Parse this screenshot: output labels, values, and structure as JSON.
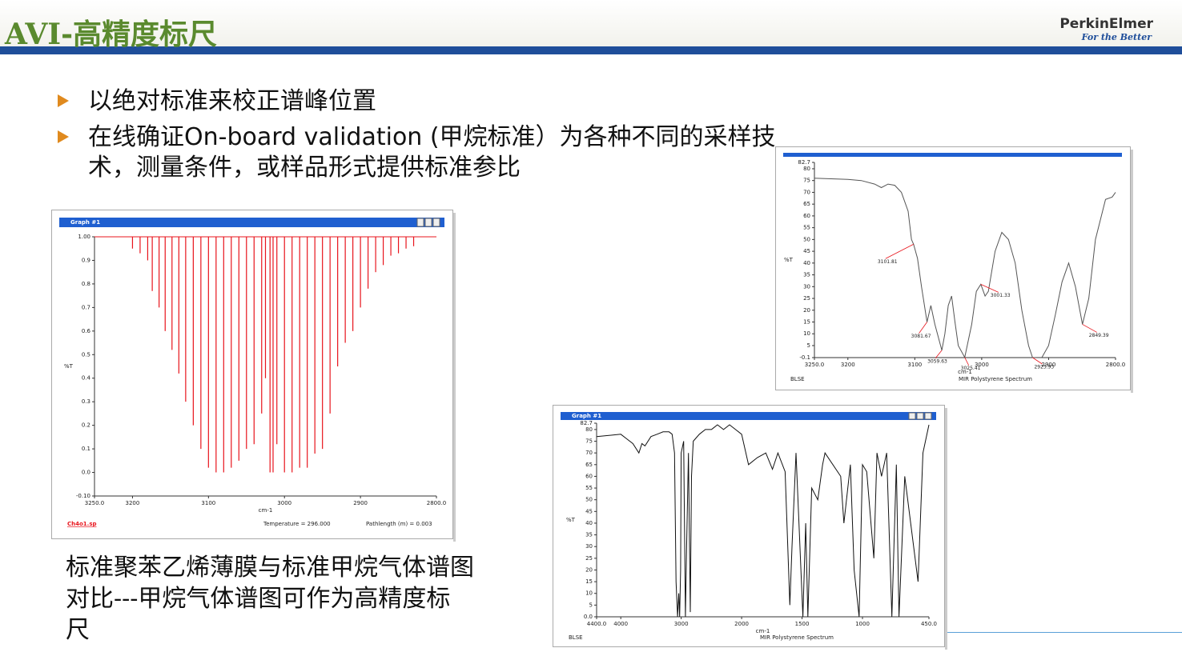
{
  "header": {
    "title": "AVI-高精度标尺",
    "logo": "PerkinElmer",
    "tagline": "For the Better"
  },
  "bullets": [
    "以绝对标准来校正谱峰位置",
    "在线确证On-board validation (甲烷标准）为各种不同的采样技术，测量条件，或样品形式提供标准参比"
  ],
  "caption": "标准聚苯乙烯薄膜与标准甲烷气体谱图对比---甲烷气体谱图可作为高精度标尺",
  "figures": [
    {
      "type": "stick",
      "window_title": "Graph #1",
      "x_label": "cm-1",
      "y_label": "%T",
      "color": "#e8141c",
      "xlim": [
        3250,
        2800
      ],
      "ylim": [
        -0.1,
        1.0
      ],
      "xticks": [
        {
          "value": 3250,
          "label": "3250.0"
        },
        3200,
        3100,
        3000,
        2900,
        {
          "value": 2800,
          "label": "2800.0"
        }
      ],
      "yticks": [
        {
          "value": -0.1,
          "label": "-0.10"
        },
        {
          "value": 0,
          "label": "0.0"
        },
        0.1,
        0.2,
        0.3,
        0.4,
        0.5,
        0.6,
        0.7,
        0.8,
        0.9,
        {
          "value": 1,
          "label": "1.00"
        }
      ],
      "x": [
        3200,
        3190,
        3180,
        3174,
        3165,
        3157,
        3148,
        3139,
        3130,
        3120,
        3110,
        3100,
        3090,
        3080,
        3070,
        3060,
        3050,
        3040,
        3030,
        3025,
        3019,
        3015,
        3010,
        3000,
        2990,
        2980,
        2970,
        2960,
        2950,
        2940,
        2930,
        2920,
        2910,
        2900,
        2890,
        2880,
        2870,
        2860,
        2850,
        2840,
        2830
      ],
      "values": [
        0.95,
        0.93,
        0.9,
        0.77,
        0.7,
        0.6,
        0.52,
        0.42,
        0.3,
        0.2,
        0.1,
        0.02,
        0,
        0,
        0.02,
        0.05,
        0.1,
        0.12,
        0.25,
        0.4,
        0,
        0,
        0.12,
        0,
        0,
        0.02,
        0.02,
        0.08,
        0.1,
        0.25,
        0.45,
        0.55,
        0.6,
        0.7,
        0.78,
        0.85,
        0.88,
        0.92,
        0.93,
        0.95,
        0.96
      ],
      "footer": [
        "Ch4o1.sp",
        "Temperature = 296.000",
        "Pathlength (m) = 0.003"
      ]
    },
    {
      "type": "line",
      "x_label": "cm-1",
      "y_label": "%T",
      "color": "#555555",
      "xlim": [
        3250,
        2800
      ],
      "ylim": [
        -0.1,
        82.7
      ],
      "xticks": [
        {
          "value": 3250,
          "label": "3250.0"
        },
        3200,
        3100,
        3000,
        2900,
        {
          "value": 2800,
          "label": "2800.0"
        }
      ],
      "yticks": [
        {
          "value": -0.1,
          "label": "-0.1"
        },
        5,
        10,
        15,
        20,
        25,
        30,
        35,
        40,
        45,
        50,
        55,
        60,
        65,
        70,
        75,
        80,
        82.7
      ],
      "x": [
        3250,
        3200,
        3180,
        3160,
        3150,
        3140,
        3130,
        3120,
        3110,
        3105,
        3101.81,
        3096,
        3090,
        3081.67,
        3076,
        3070,
        3059.63,
        3055,
        3050,
        3045,
        3040,
        3035,
        3025.41,
        3015,
        3008,
        3001.33,
        2995,
        2990,
        2980,
        2970,
        2960,
        2950,
        2940,
        2930,
        2923.93,
        2910,
        2900,
        2890,
        2880,
        2870,
        2860,
        2849.39,
        2840,
        2830,
        2815,
        2805,
        2800
      ],
      "values": [
        76,
        75.5,
        75,
        73.5,
        72,
        73.5,
        73,
        70,
        62,
        50,
        48,
        42,
        30,
        15,
        22,
        14,
        3,
        10,
        22,
        26,
        15,
        5,
        0,
        14,
        28,
        31,
        26,
        28,
        45,
        53,
        50,
        40,
        20,
        5,
        -0.1,
        0,
        5,
        18,
        32,
        40,
        30,
        14,
        25,
        50,
        67,
        68,
        70
      ],
      "annotations": [
        {
          "label": "3101.81",
          "x": 3101.81
        },
        {
          "label": "3081.67",
          "x": 3081.67
        },
        {
          "label": "3059.63",
          "x": 3059.63
        },
        {
          "label": "3025.41",
          "x": 3025.41
        },
        {
          "label": "3001.33",
          "x": 3001.33
        },
        {
          "label": "2923.93",
          "x": 2923.93
        },
        {
          "label": "2849.39",
          "x": 2849.39
        }
      ],
      "footer": [
        "BLSE",
        "MIR Polystyrene Spectrum"
      ]
    },
    {
      "type": "line",
      "window_title": "Graph #1",
      "x_label": "cm-1",
      "y_label": "%T",
      "color": "#111111",
      "xlim": [
        4400,
        450
      ],
      "ylim": [
        0,
        82.7
      ],
      "xbreak": 2000,
      "xticks": [
        {
          "value": 4400,
          "label": "4400.0"
        },
        4000,
        3000,
        2000,
        1500,
        1000,
        {
          "value": 450,
          "label": "450.0"
        }
      ],
      "yticks": [
        {
          "value": 0,
          "label": "0.0"
        },
        5,
        10,
        15,
        20,
        25,
        30,
        35,
        40,
        45,
        50,
        55,
        60,
        65,
        70,
        75,
        80,
        82.7
      ],
      "x": [
        4400,
        4000,
        3900,
        3800,
        3700,
        3650,
        3600,
        3500,
        3400,
        3300,
        3200,
        3150,
        3110,
        3085,
        3060,
        3040,
        3026,
        3010,
        3000,
        2960,
        2930,
        2910,
        2880,
        2850,
        2830,
        2800,
        2700,
        2600,
        2500,
        2400,
        2300,
        2200,
        2100,
        2000,
        1943,
        1870,
        1800,
        1745,
        1700,
        1640,
        1601,
        1583,
        1550,
        1493,
        1470,
        1452,
        1420,
        1370,
        1330,
        1310,
        1180,
        1154,
        1100,
        1069,
        1028,
        1000,
        965,
        906,
        880,
        842,
        800,
        757,
        720,
        698,
        650,
        540,
        500,
        450
      ],
      "values": [
        77,
        78,
        76,
        74,
        70,
        74,
        73,
        77,
        78,
        79,
        79,
        78,
        70,
        15,
        0,
        10,
        0,
        20,
        70,
        75,
        0,
        30,
        70,
        2,
        60,
        75,
        78,
        80,
        80,
        82,
        80,
        82,
        80,
        78,
        65,
        68,
        70,
        63,
        70,
        62,
        5,
        30,
        70,
        0,
        40,
        0,
        55,
        50,
        65,
        70,
        60,
        40,
        65,
        20,
        0,
        65,
        62,
        25,
        70,
        60,
        70,
        0,
        65,
        0,
        60,
        15,
        70,
        82
      ],
      "footer": [
        "BLSE",
        "MIR Polystyrene Spectrum"
      ]
    }
  ]
}
